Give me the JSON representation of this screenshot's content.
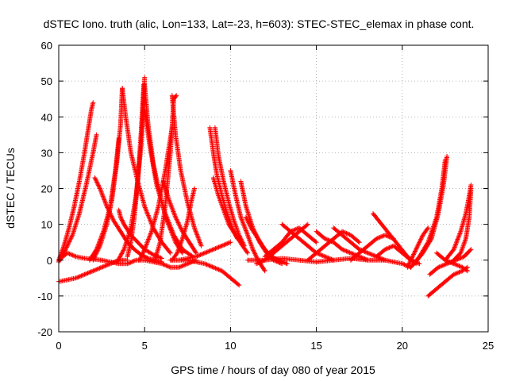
{
  "chart_data": {
    "type": "scatter",
    "title": "dSTEC Iono. truth (alic, Lon=133, Lat=-23, h=603): STEC-STEC_elemax in phase cont.",
    "xlabel": "GPS time / hours of day 080 of year 2015",
    "ylabel": "dSTEC  / TECUs",
    "xlim": [
      0,
      25
    ],
    "ylim": [
      -20,
      60
    ],
    "xticks": [
      0,
      5,
      10,
      15,
      20,
      25
    ],
    "yticks": [
      -20,
      -10,
      0,
      10,
      20,
      30,
      40,
      50,
      60
    ],
    "grid": true,
    "marker": "+",
    "color": "#ff0000",
    "series": [
      {
        "x": [
          0.0,
          0.3,
          0.6,
          0.9,
          1.2,
          1.5,
          1.7,
          1.9,
          2.0
        ],
        "y": [
          0,
          4,
          9,
          15,
          22,
          30,
          36,
          42,
          44
        ]
      },
      {
        "x": [
          0.0,
          0.4,
          0.8,
          1.2,
          1.6,
          2.0,
          2.2
        ],
        "y": [
          -0.5,
          3,
          7,
          13,
          21,
          30,
          35
        ]
      },
      {
        "x": [
          2.1,
          2.4,
          2.8,
          3.2,
          3.6,
          4.0,
          4.4,
          4.8,
          5.2,
          5.6,
          6.0
        ],
        "y": [
          23,
          20,
          15,
          11,
          8,
          5,
          3,
          1.5,
          0.5,
          0,
          -0.5
        ]
      },
      {
        "x": [
          2.0,
          2.4,
          2.8,
          3.1,
          3.4,
          3.6,
          3.7
        ],
        "y": [
          0,
          4,
          10,
          17,
          28,
          38,
          48
        ]
      },
      {
        "x": [
          1.8,
          2.2,
          2.6,
          3.0,
          3.3,
          3.5
        ],
        "y": [
          0,
          3,
          8,
          15,
          25,
          34
        ]
      },
      {
        "x": [
          3.7,
          3.9,
          4.2,
          4.6,
          5.0,
          5.5,
          6.0,
          6.5
        ],
        "y": [
          48,
          40,
          30,
          22,
          15,
          9,
          5,
          2
        ]
      },
      {
        "x": [
          3.5,
          3.6,
          3.8,
          4.2,
          4.6,
          5.0,
          5.5,
          6.0
        ],
        "y": [
          14,
          12,
          10,
          7,
          5,
          3,
          1.5,
          0.5
        ]
      },
      {
        "x": [
          4.0,
          4.2,
          4.4,
          4.6,
          4.8,
          4.95
        ],
        "y": [
          1,
          5,
          12,
          22,
          36,
          49
        ]
      },
      {
        "x": [
          3.4,
          3.8,
          4.2,
          4.5,
          4.8,
          5.0
        ],
        "y": [
          -0.5,
          3,
          9,
          18,
          32,
          51
        ]
      },
      {
        "x": [
          5.0,
          5.2,
          5.5,
          5.9,
          6.3,
          6.8,
          7.2
        ],
        "y": [
          49,
          38,
          27,
          18,
          11,
          5,
          2
        ]
      },
      {
        "x": [
          5.0,
          5.3,
          5.7,
          6.2,
          6.7,
          7.2,
          7.8
        ],
        "y": [
          42,
          32,
          21,
          13,
          7,
          3,
          1
        ]
      },
      {
        "x": [
          4.7,
          5.0,
          5.4,
          5.8,
          6.2,
          6.6
        ],
        "y": [
          0,
          3,
          8,
          15,
          25,
          37
        ]
      },
      {
        "x": [
          5.6,
          5.9,
          6.2,
          6.5,
          6.7,
          6.85
        ],
        "y": [
          0,
          5,
          15,
          30,
          45,
          46
        ]
      },
      {
        "x": [
          6.6,
          6.8,
          7.1,
          7.5,
          7.9,
          8.3
        ],
        "y": [
          46,
          35,
          25,
          16,
          9,
          4
        ]
      },
      {
        "x": [
          6.1,
          6.4,
          6.8,
          7.2,
          7.6,
          8.0
        ],
        "y": [
          22,
          17,
          12,
          8,
          5,
          2
        ]
      },
      {
        "x": [
          6.6,
          6.9,
          7.2,
          7.5,
          7.7,
          7.9
        ],
        "y": [
          0,
          2,
          6,
          11,
          16,
          20
        ]
      },
      {
        "x": [
          0.0,
          0.5,
          1.0,
          1.5,
          2.0,
          2.5,
          3.0,
          3.5,
          4.0
        ],
        "y": [
          -6,
          -5.5,
          -5,
          -4,
          -3,
          -2,
          -1,
          0,
          0
        ]
      },
      {
        "x": [
          0.0,
          0.5,
          1.0,
          1.5,
          2.0,
          2.5,
          3.0,
          3.5,
          4.0,
          4.5,
          5.0,
          5.5,
          6.0,
          6.5,
          7.0,
          7.5,
          8.0
        ],
        "y": [
          0,
          2,
          1,
          0.5,
          0.3,
          0,
          -0.5,
          -1,
          -1,
          0,
          0,
          -0.5,
          -1,
          -2,
          -2,
          -1,
          0
        ]
      },
      {
        "x": [
          6.5,
          7.0,
          7.5,
          8.0,
          8.5,
          9.0,
          9.5,
          10.0
        ],
        "y": [
          0,
          0,
          0.5,
          1,
          2,
          3,
          4,
          5
        ]
      },
      {
        "x": [
          8.8,
          9.0,
          9.2,
          9.5,
          9.8,
          10.1,
          10.4
        ],
        "y": [
          37,
          30,
          24,
          18,
          13,
          9,
          6
        ]
      },
      {
        "x": [
          9.1,
          9.3,
          9.6,
          9.9,
          10.2,
          10.5,
          10.8
        ],
        "y": [
          37,
          29,
          22,
          16,
          11,
          7,
          4
        ]
      },
      {
        "x": [
          9.0,
          9.3,
          9.6,
          9.9,
          10.3,
          10.7,
          11.0
        ],
        "y": [
          23,
          18,
          14,
          10,
          7,
          4,
          2
        ]
      },
      {
        "x": [
          7.0,
          7.5,
          8.0,
          8.5,
          9.0,
          9.5,
          10.0,
          10.5
        ],
        "y": [
          0,
          0,
          -0.5,
          -1,
          -2,
          -3,
          -5,
          -7
        ]
      },
      {
        "x": [
          10.0,
          10.3,
          10.6,
          11.0,
          11.3,
          11.6,
          12.0
        ],
        "y": [
          25,
          18,
          12,
          7,
          3,
          0,
          -3
        ]
      },
      {
        "x": [
          10.6,
          10.9,
          11.3,
          11.7,
          12.1,
          12.5,
          13.0
        ],
        "y": [
          22,
          15,
          9,
          5,
          2,
          0,
          -1
        ]
      },
      {
        "x": [
          10.9,
          11.2,
          11.6,
          12.0,
          12.4,
          12.8,
          13.3
        ],
        "y": [
          12,
          9,
          6,
          3,
          1,
          0,
          -1
        ]
      },
      {
        "x": [
          11.5,
          12.0,
          12.5,
          13.0,
          13.5,
          14.0,
          14.5
        ],
        "y": [
          -1,
          0,
          2,
          4,
          6,
          8,
          10
        ]
      },
      {
        "x": [
          12.0,
          12.5,
          13.0,
          13.5,
          14.0,
          14.5,
          15.0
        ],
        "y": [
          1,
          3,
          5,
          8,
          9,
          7,
          5
        ]
      },
      {
        "x": [
          13.0,
          13.5,
          14.0,
          14.5,
          15.0,
          15.5,
          16.0
        ],
        "y": [
          10,
          8,
          6,
          4,
          2,
          1,
          0
        ]
      },
      {
        "x": [
          14.5,
          15.0,
          15.5,
          16.0,
          16.5,
          17.0,
          17.5
        ],
        "y": [
          0,
          2,
          4,
          6,
          8,
          7,
          5
        ]
      },
      {
        "x": [
          15.0,
          15.5,
          16.0,
          16.5,
          17.0,
          17.5,
          18.0
        ],
        "y": [
          8,
          6,
          5,
          3,
          2,
          1,
          0
        ]
      },
      {
        "x": [
          16.0,
          16.5,
          17.0,
          17.5,
          18.0,
          18.5,
          19.0
        ],
        "y": [
          9,
          7,
          5,
          3,
          2,
          1,
          0
        ]
      },
      {
        "x": [
          17.0,
          17.5,
          18.0,
          18.5,
          19.0,
          19.5
        ],
        "y": [
          0,
          2,
          4,
          6,
          7,
          6
        ]
      },
      {
        "x": [
          18.3,
          18.8,
          19.3,
          19.8,
          20.3,
          20.8
        ],
        "y": [
          13,
          10,
          7,
          4,
          1,
          -1
        ]
      },
      {
        "x": [
          18.5,
          19.0,
          19.5,
          20.0,
          20.5,
          21.0
        ],
        "y": [
          1,
          3,
          4,
          2,
          0,
          -1
        ]
      },
      {
        "x": [
          11.0,
          12.0,
          13.0,
          14.0,
          15.0,
          16.0,
          17.0,
          18.0,
          19.0,
          20.0,
          20.5
        ],
        "y": [
          0,
          0,
          0.5,
          0,
          -0.5,
          0,
          0.5,
          0,
          0,
          -1,
          -2
        ]
      },
      {
        "x": [
          20.3,
          20.6,
          20.9,
          21.2,
          21.5
        ],
        "y": [
          -2,
          1,
          4,
          7,
          9
        ]
      },
      {
        "x": [
          20.5,
          21.0,
          21.5,
          22.0,
          22.3,
          22.5
        ],
        "y": [
          -2,
          1,
          5,
          12,
          20,
          28
        ]
      },
      {
        "x": [
          20.7,
          21.2,
          21.7,
          22.1,
          22.4,
          22.6
        ],
        "y": [
          -1,
          2,
          6,
          13,
          21,
          29
        ]
      },
      {
        "x": [
          21.5,
          22.0,
          22.5,
          23.0,
          23.5,
          23.8
        ],
        "y": [
          -10,
          -8,
          -6,
          -4,
          -3,
          -2
        ]
      },
      {
        "x": [
          21.6,
          22.1,
          22.6,
          23.1,
          23.6,
          24.0
        ],
        "y": [
          -4,
          -2,
          -1,
          0,
          1,
          3
        ]
      },
      {
        "x": [
          22.0,
          22.5,
          23.0,
          23.5,
          23.8
        ],
        "y": [
          2,
          0,
          -1,
          -2,
          -3
        ]
      },
      {
        "x": [
          22.5,
          23.0,
          23.4,
          23.7,
          23.9,
          24.0
        ],
        "y": [
          0,
          3,
          8,
          13,
          18,
          21
        ]
      },
      {
        "x": [
          23.0,
          23.4,
          23.7,
          23.9,
          24.0
        ],
        "y": [
          0,
          2,
          6,
          12,
          20
        ]
      }
    ]
  }
}
